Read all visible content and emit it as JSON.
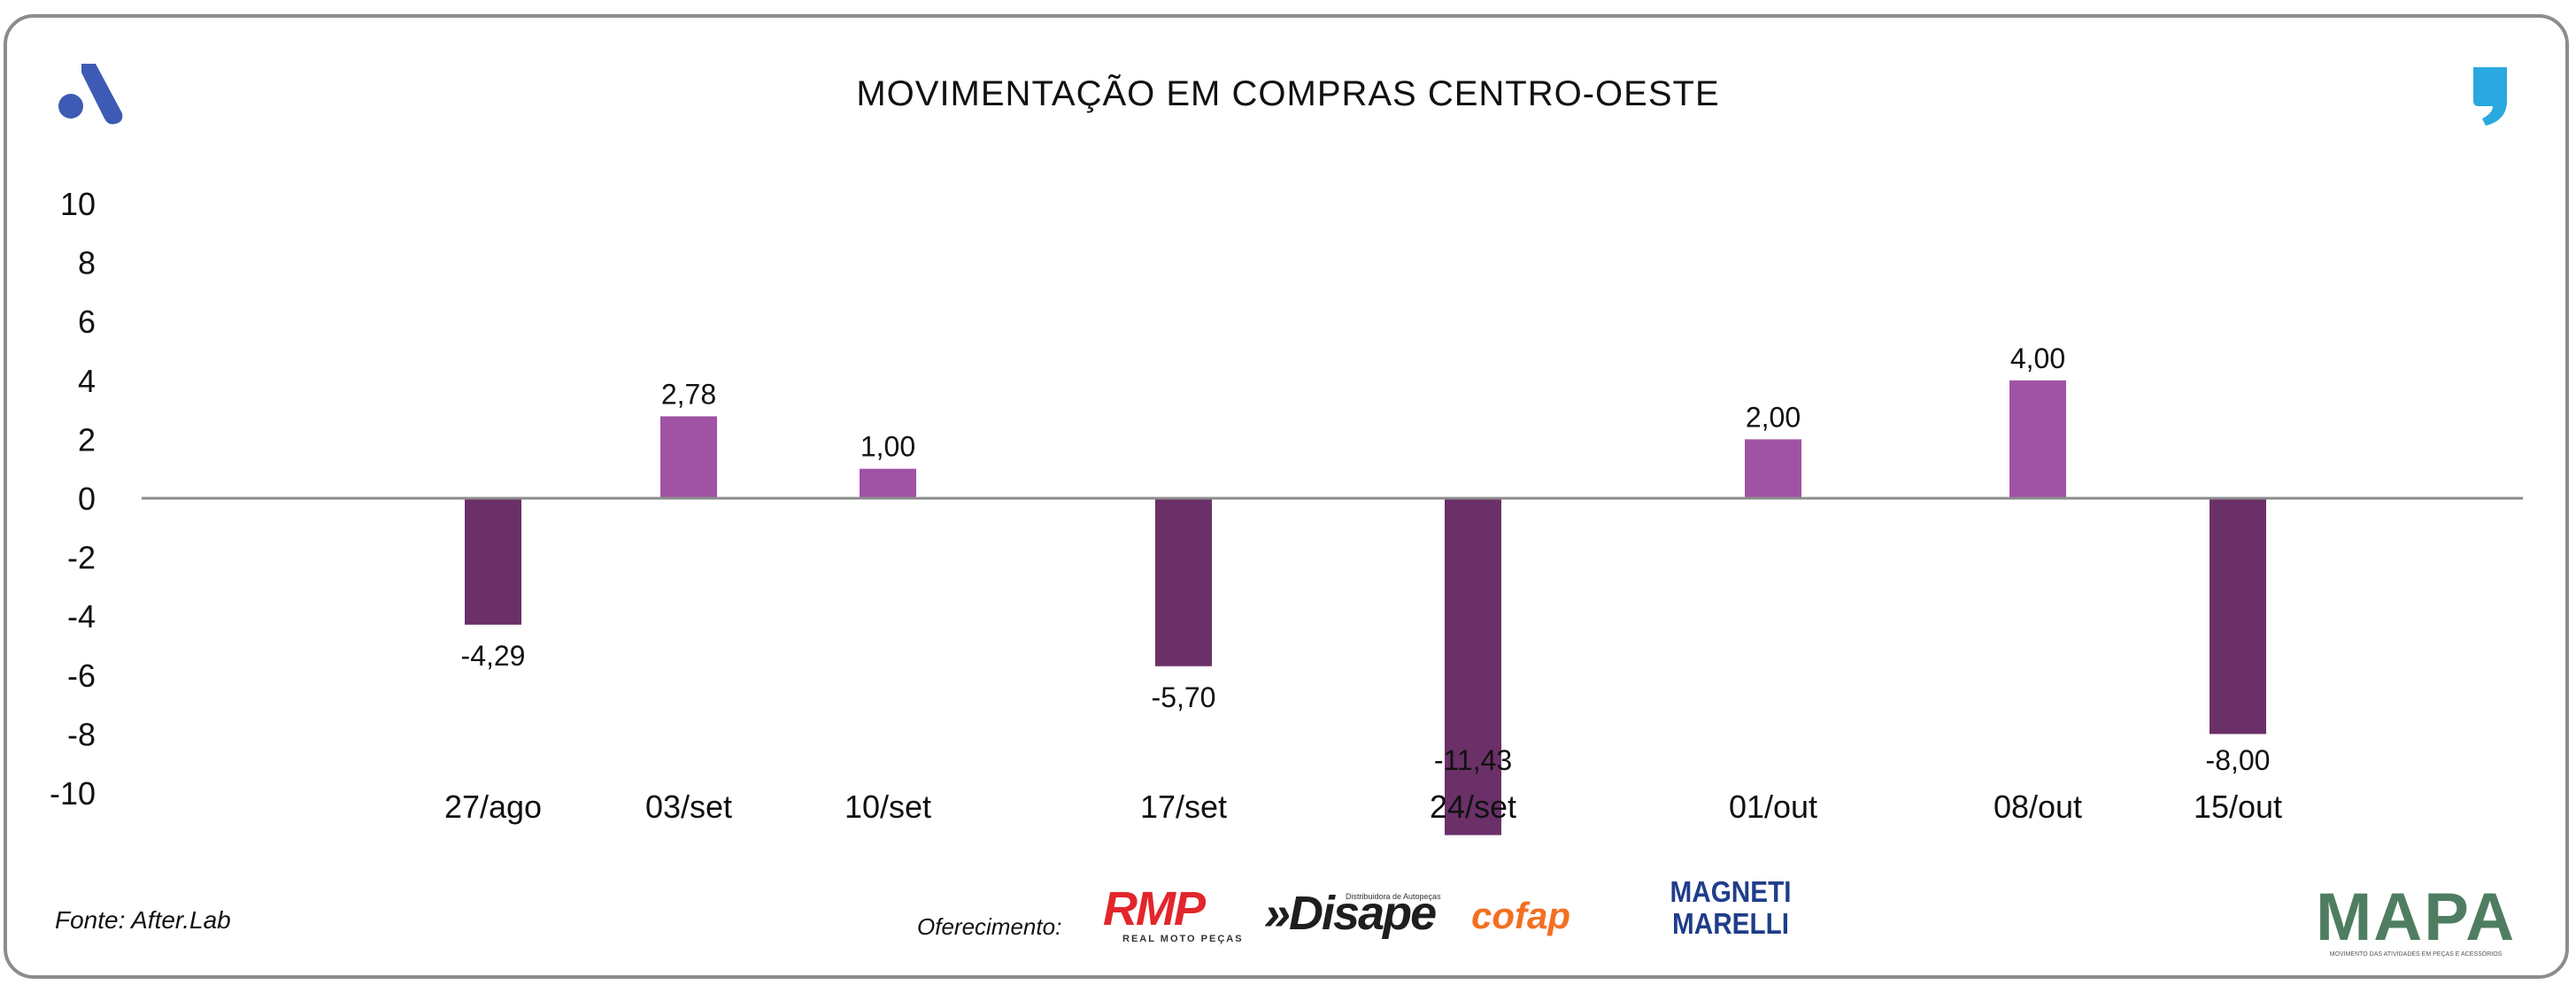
{
  "header": {
    "title": "MOVIMENTAÇÃO EM COMPRAS CENTRO-OESTE"
  },
  "chart_data": {
    "type": "bar",
    "title": "MOVIMENTAÇÃO EM COMPRAS CENTRO-OESTE",
    "xlabel": "",
    "ylabel": "",
    "ylim": [
      -10,
      10
    ],
    "yticks": [
      10,
      8,
      6,
      4,
      2,
      0,
      -2,
      -4,
      -6,
      -8,
      -10
    ],
    "categories": [
      "27/ago",
      "03/set",
      "10/set",
      "17/set",
      "24/set",
      "01/out",
      "08/out",
      "15/out"
    ],
    "values": [
      -4.29,
      2.78,
      1.0,
      -5.7,
      -11.43,
      2.0,
      4.0,
      -8.0
    ],
    "data_labels": [
      "-4,29",
      "2,78",
      "1,00",
      "-5,70",
      "-11,43",
      "2,00",
      "4,00",
      "-8,00"
    ],
    "colors": {
      "positive": "#a052a4",
      "negative": "#6b3068",
      "zero_line": "#8c8c8c"
    },
    "legend": false,
    "grid": false
  },
  "footer": {
    "source": "Fonte: After.Lab",
    "offer_label": "Oferecimento:",
    "sponsors": {
      "rmp": {
        "name": "RMP",
        "tagline": "REAL MOTO PEÇAS"
      },
      "disape": {
        "name": "»Disape",
        "tagline": "Distribuidora de Autopeças"
      },
      "cofap": {
        "name": "cofap"
      },
      "magneti": {
        "line1": "MAGNETI",
        "line2": "MARELLI"
      },
      "mapa": {
        "name": "MAPA",
        "tagline": "MOVIMENTO DAS ATIVIDADES EM PEÇAS E ACESSÓRIOS"
      }
    }
  },
  "brand": {
    "accent_blue": "#3d5bb4",
    "accent_cyan": "#29a9df"
  }
}
